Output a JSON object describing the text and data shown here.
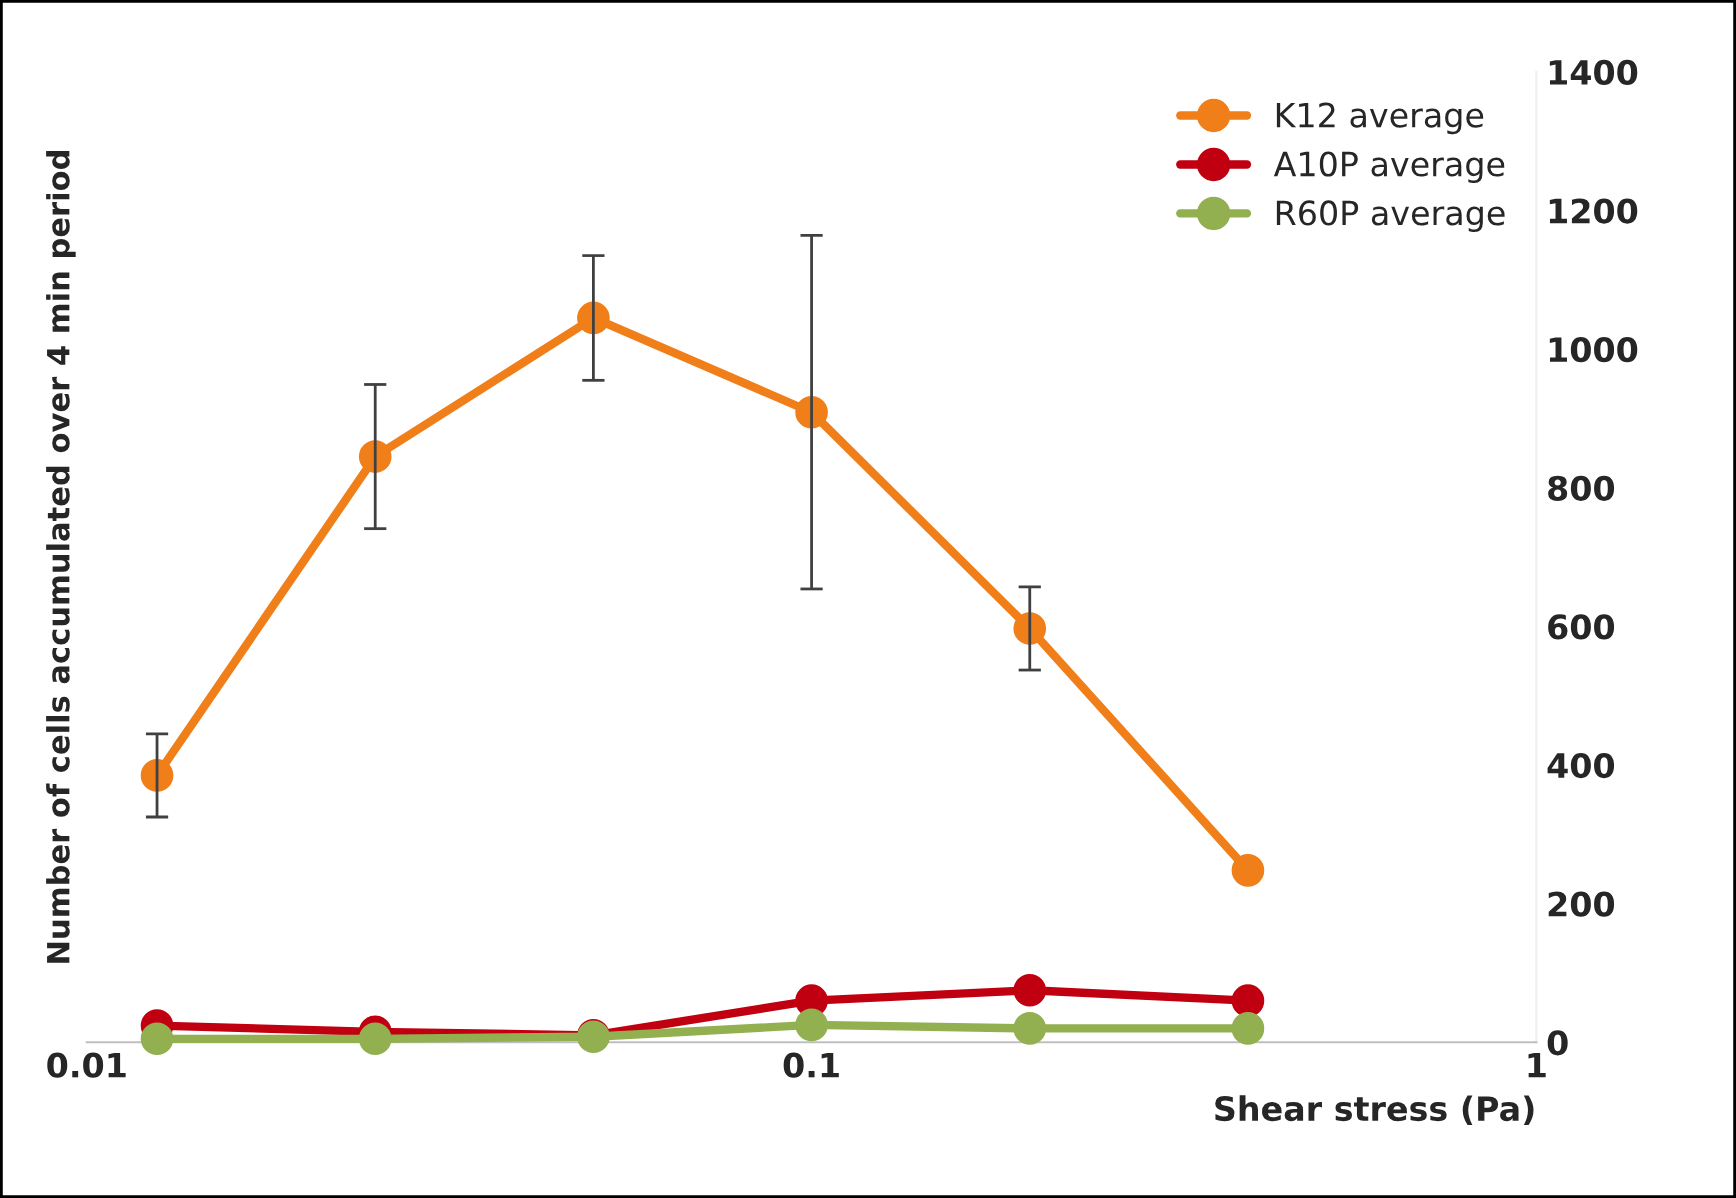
{
  "chart_data": {
    "type": "line",
    "xlabel": "Shear stress (Pa)",
    "ylabel": "Number of cells accumulated over 4 min period",
    "x": [
      0.0125,
      0.025,
      0.05,
      0.1,
      0.2,
      0.4
    ],
    "series": [
      {
        "name": "K12 average",
        "color": "#f07f1a",
        "values": [
          385,
          845,
          1045,
          909,
          597,
          248
        ],
        "errors": [
          60,
          104,
          90,
          255,
          60,
          null
        ]
      },
      {
        "name": "A10P average",
        "color": "#c00010",
        "values": [
          24,
          15,
          10,
          60,
          75,
          60
        ]
      },
      {
        "name": "R60P average",
        "color": "#92b050",
        "values": [
          5,
          5,
          8,
          25,
          20,
          20
        ]
      }
    ],
    "log": "x",
    "xlim": [
      0.01,
      1
    ],
    "xticks": [
      {
        "value": 0.01,
        "label": "0.01"
      },
      {
        "value": 0.1,
        "label": "0.1"
      },
      {
        "value": 1,
        "label": "1"
      }
    ],
    "ylim": [
      0,
      1400
    ],
    "yticks": [
      0,
      200,
      400,
      600,
      800,
      1000,
      1200,
      1400
    ],
    "grid": false,
    "legend": "top right",
    "marker": "circle",
    "line_style": "solid"
  }
}
